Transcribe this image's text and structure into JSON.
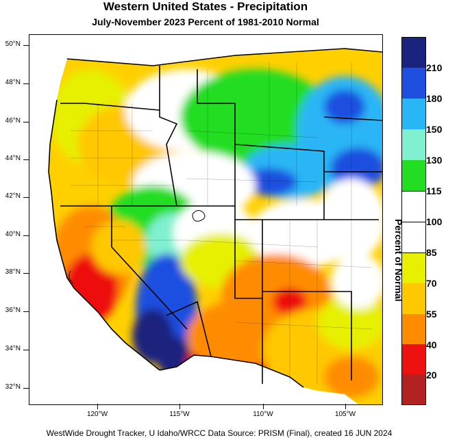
{
  "title": "Western United States - Precipitation",
  "subtitle": "July-November 2023  Percent of 1981-2010 Normal",
  "footer": "WestWide Drought Tracker, U Idaho/WRCC Data Source: PRISM (Final), created 16 JUN 2024",
  "colorbar": {
    "title": "Percent of Normal",
    "levels": [
      {
        "label": "210",
        "color": "#1a237e"
      },
      {
        "label": "180",
        "color": "#1e4fe0"
      },
      {
        "label": "150",
        "color": "#29b6f6"
      },
      {
        "label": "130",
        "color": "#80f0d0"
      },
      {
        "label": "115",
        "color": "#22dd22"
      },
      {
        "label": "100",
        "color": "#ffffff"
      },
      {
        "label": "85",
        "color": "#ffffff"
      },
      {
        "label": "70",
        "color": "#e6f000"
      },
      {
        "label": "55",
        "color": "#ffc800"
      },
      {
        "label": "40",
        "color": "#ff8c00"
      },
      {
        "label": "20",
        "color": "#ee1111"
      },
      {
        "label": "",
        "color": "#b22222"
      }
    ]
  },
  "latitude_labels": [
    "50°N",
    "48°N",
    "46°N",
    "44°N",
    "42°N",
    "40°N",
    "38°N",
    "36°N",
    "34°N",
    "32°N"
  ],
  "longitude_labels": [
    "120°W",
    "115°W",
    "110°W",
    "105°W"
  ]
}
